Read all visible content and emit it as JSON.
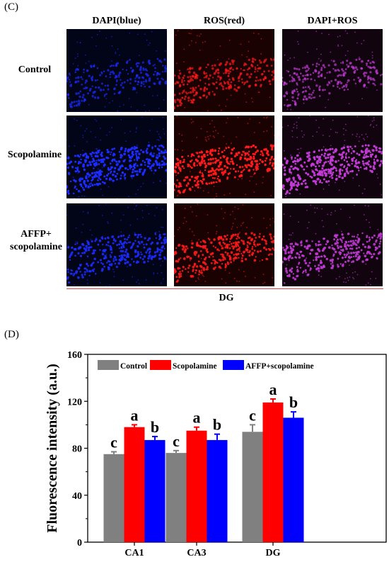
{
  "panel_c": {
    "label": "(C)",
    "columns": [
      "DAPI(blue)",
      "ROS(red)",
      "DAPI+ROS"
    ],
    "rows": [
      {
        "label": "Control",
        "intensity": 0.45
      },
      {
        "label": "Scopolamine",
        "intensity": 1.0
      },
      {
        "label": "AFFP+\nscopolamine",
        "intensity": 0.8
      }
    ],
    "channel_colors": [
      "#1a2cff",
      "#ff1a1a",
      "#c23ad6"
    ],
    "region": "DG"
  },
  "panel_d": {
    "label": "(D)"
  },
  "chart_data": {
    "type": "bar",
    "categories": [
      "CA1",
      "CA3",
      "DG"
    ],
    "series": [
      {
        "name": "Control",
        "values": [
          75,
          76,
          94
        ],
        "errors": [
          2,
          2,
          6
        ],
        "color": "#808080",
        "letters": [
          "c",
          "c",
          "c"
        ]
      },
      {
        "name": "Scopolamine",
        "values": [
          98,
          95,
          119
        ],
        "errors": [
          2,
          3,
          3
        ],
        "color": "#ff0000",
        "letters": [
          "a",
          "a",
          "a"
        ]
      },
      {
        "name": "AFFP+scopolamine",
        "values": [
          87,
          87,
          106
        ],
        "errors": [
          3,
          5,
          5
        ],
        "color": "#0000ff",
        "letters": [
          "b",
          "b",
          "b"
        ]
      }
    ],
    "ylabel": "Fluorescence intensity (a.u.)",
    "xlabel": "",
    "ylim": [
      0,
      160
    ],
    "yticks": [
      0,
      40,
      80,
      120,
      160
    ],
    "legend_position": "top"
  }
}
